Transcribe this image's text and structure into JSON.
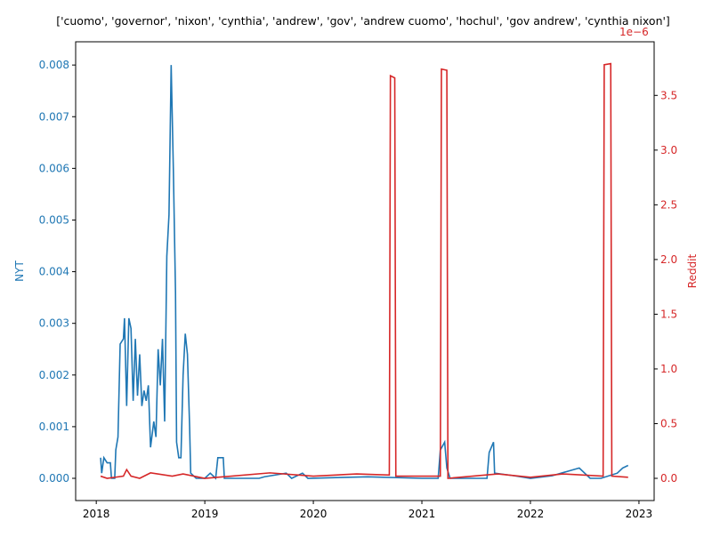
{
  "chart_data": {
    "type": "line",
    "title": "['cuomo', 'governor', 'nixon', 'cynthia', 'andrew', 'gov', 'andrew cuomo', 'hochul', 'gov andrew', 'cynthia nixon']",
    "ylabel": "NYT",
    "y2label": "Reddit",
    "y2_offset_label": "1e−6",
    "xlim": [
      2017.81,
      2023.14
    ],
    "xticks": [
      2018,
      2019,
      2020,
      2021,
      2022,
      2023
    ],
    "ylim": [
      -0.00043,
      0.00845
    ],
    "yticks": [
      {
        "value": 0,
        "label": "0.000"
      },
      {
        "value": 0.001,
        "label": "0.001"
      },
      {
        "value": 0.002,
        "label": "0.002"
      },
      {
        "value": 0.003,
        "label": "0.003"
      },
      {
        "value": 0.004,
        "label": "0.004"
      },
      {
        "value": 0.005,
        "label": "0.005"
      },
      {
        "value": 0.006,
        "label": "0.006"
      },
      {
        "value": 0.007,
        "label": "0.007"
      },
      {
        "value": 0.008,
        "label": "0.008"
      }
    ],
    "y2lim": [
      -2.03e-07,
      3.99e-06
    ],
    "y2ticks": [
      {
        "value": 0,
        "label": "0.0"
      },
      {
        "value": 5e-07,
        "label": "0.5"
      },
      {
        "value": 1e-06,
        "label": "1.0"
      },
      {
        "value": 1.5e-06,
        "label": "1.5"
      },
      {
        "value": 2e-06,
        "label": "2.0"
      },
      {
        "value": 2.5e-06,
        "label": "2.5"
      },
      {
        "value": 3e-06,
        "label": "3.0"
      },
      {
        "value": 3.5e-06,
        "label": "3.5"
      }
    ],
    "series": [
      {
        "name": "NYT",
        "color": "#1f77b4",
        "x": [
          2018.04,
          2018.05,
          2018.07,
          2018.1,
          2018.13,
          2018.14,
          2018.17,
          2018.18,
          2018.2,
          2018.22,
          2018.25,
          2018.26,
          2018.28,
          2018.3,
          2018.32,
          2018.34,
          2018.36,
          2018.38,
          2018.4,
          2018.42,
          2018.44,
          2018.46,
          2018.48,
          2018.5,
          2018.53,
          2018.55,
          2018.57,
          2018.59,
          2018.61,
          2018.63,
          2018.65,
          2018.67,
          2018.69,
          2018.71,
          2018.73,
          2018.74,
          2018.76,
          2018.78,
          2018.8,
          2018.82,
          2018.84,
          2018.86,
          2018.87,
          2018.92,
          2019.0,
          2019.05,
          2019.1,
          2019.12,
          2019.17,
          2019.18,
          2019.5,
          2019.55,
          2019.75,
          2019.8,
          2019.9,
          2019.95,
          2020.5,
          2021.0,
          2021.15,
          2021.17,
          2021.21,
          2021.23,
          2021.26,
          2021.6,
          2021.62,
          2021.66,
          2021.67,
          2021.85,
          2022.0,
          2022.2,
          2022.45,
          2022.55,
          2022.65,
          2022.8,
          2022.85,
          2022.9
        ],
        "values": [
          0.0004,
          0.0001,
          0.0004,
          0.0003,
          0.0003,
          0.0,
          0.0,
          0.00055,
          0.0008,
          0.0026,
          0.0027,
          0.0031,
          0.0014,
          0.0031,
          0.0029,
          0.0015,
          0.0027,
          0.0016,
          0.0024,
          0.0014,
          0.0017,
          0.0015,
          0.0018,
          0.0006,
          0.0011,
          0.0008,
          0.0025,
          0.0018,
          0.0027,
          0.0011,
          0.0043,
          0.0051,
          0.008,
          0.006,
          0.0036,
          0.0007,
          0.0004,
          0.0004,
          0.002,
          0.0028,
          0.0024,
          0.001,
          0.0001,
          0.0,
          0.0,
          0.0001,
          0.0,
          0.0004,
          0.0004,
          0.0,
          0.0,
          3e-05,
          0.0001,
          0.0,
          0.0001,
          0.0,
          3e-05,
          0.0,
          0.0,
          0.00055,
          0.0007,
          0.0002,
          0.0,
          0.0,
          0.0005,
          0.0007,
          0.0001,
          5e-05,
          0.0,
          5e-05,
          0.0002,
          0.0,
          0.0,
          0.0001,
          0.0002,
          0.00025
        ]
      },
      {
        "name": "Reddit",
        "color": "#d62728",
        "axis": "y2",
        "x": [
          2018.04,
          2018.1,
          2018.25,
          2018.28,
          2018.32,
          2018.4,
          2018.5,
          2018.7,
          2018.8,
          2019.0,
          2019.6,
          2020.0,
          2020.4,
          2020.7,
          2020.71,
          2020.75,
          2020.76,
          2021.17,
          2021.18,
          2021.23,
          2021.24,
          2021.7,
          2022.0,
          2022.3,
          2022.67,
          2022.68,
          2022.74,
          2022.75,
          2022.9
        ],
        "values": [
          2e-08,
          0,
          2e-08,
          8e-08,
          2e-08,
          0,
          5e-08,
          2e-08,
          4e-08,
          0,
          5e-08,
          2e-08,
          4e-08,
          3e-08,
          3.68e-06,
          3.66e-06,
          2e-08,
          2e-08,
          3.74e-06,
          3.73e-06,
          0,
          4e-08,
          1e-08,
          4e-08,
          2e-08,
          3.78e-06,
          3.79e-06,
          2e-08,
          1e-08
        ]
      }
    ]
  }
}
